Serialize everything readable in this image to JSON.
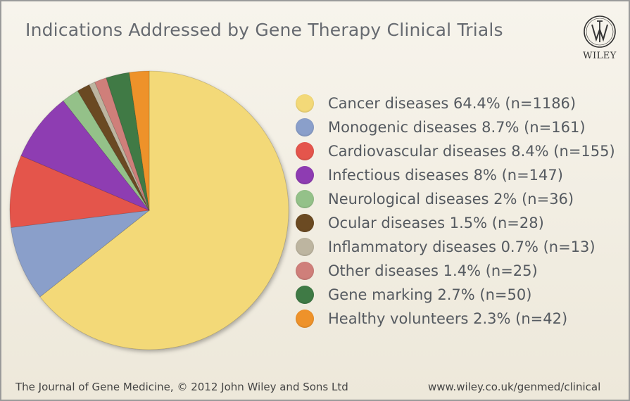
{
  "header": {
    "title": "Indications Addressed by Gene Therapy Clinical Trials"
  },
  "logo": {
    "text": "WILEY"
  },
  "footer": {
    "left": "The Journal of Gene Medicine, © 2012 John Wiley and Sons Ltd",
    "right": "www.wiley.co.uk/genmed/clinical"
  },
  "chart_data": {
    "type": "pie",
    "title": "Indications Addressed by Gene Therapy Clinical Trials",
    "legend_position": "right",
    "slices": [
      {
        "name": "Cancer diseases",
        "percent": 64.4,
        "n": 1186,
        "color": "#f3d978",
        "label": "Cancer diseases 64.4% (n=1186)"
      },
      {
        "name": "Monogenic diseases",
        "percent": 8.7,
        "n": 161,
        "color": "#8a9fca",
        "label": "Monogenic diseases 8.7% (n=161)"
      },
      {
        "name": "Cardiovascular diseases",
        "percent": 8.4,
        "n": 155,
        "color": "#e4554c",
        "label": "Cardiovascular diseases 8.4% (n=155)"
      },
      {
        "name": "Infectious diseases",
        "percent": 8.0,
        "n": 147,
        "color": "#8e3cb2",
        "label": "Infectious diseases 8% (n=147)"
      },
      {
        "name": "Neurological diseases",
        "percent": 2.0,
        "n": 36,
        "color": "#94c189",
        "label": "Neurological diseases 2% (n=36)"
      },
      {
        "name": "Ocular diseases",
        "percent": 1.5,
        "n": 28,
        "color": "#6b4a22",
        "label": "Ocular diseases 1.5% (n=28)"
      },
      {
        "name": "Inflammatory diseases",
        "percent": 0.7,
        "n": 13,
        "color": "#bdb5a0",
        "label": "Inflammatory diseases 0.7% (n=13)"
      },
      {
        "name": "Other diseases",
        "percent": 1.4,
        "n": 25,
        "color": "#cf7f7a",
        "label": "Other diseases 1.4% (n=25)"
      },
      {
        "name": "Gene marking",
        "percent": 2.7,
        "n": 50,
        "color": "#3f7a45",
        "label": "Gene marking 2.7% (n=50)"
      },
      {
        "name": "Healthy volunteers",
        "percent": 2.3,
        "n": 42,
        "color": "#ee922a",
        "label": "Healthy volunteers 2.3% (n=42)"
      }
    ]
  }
}
